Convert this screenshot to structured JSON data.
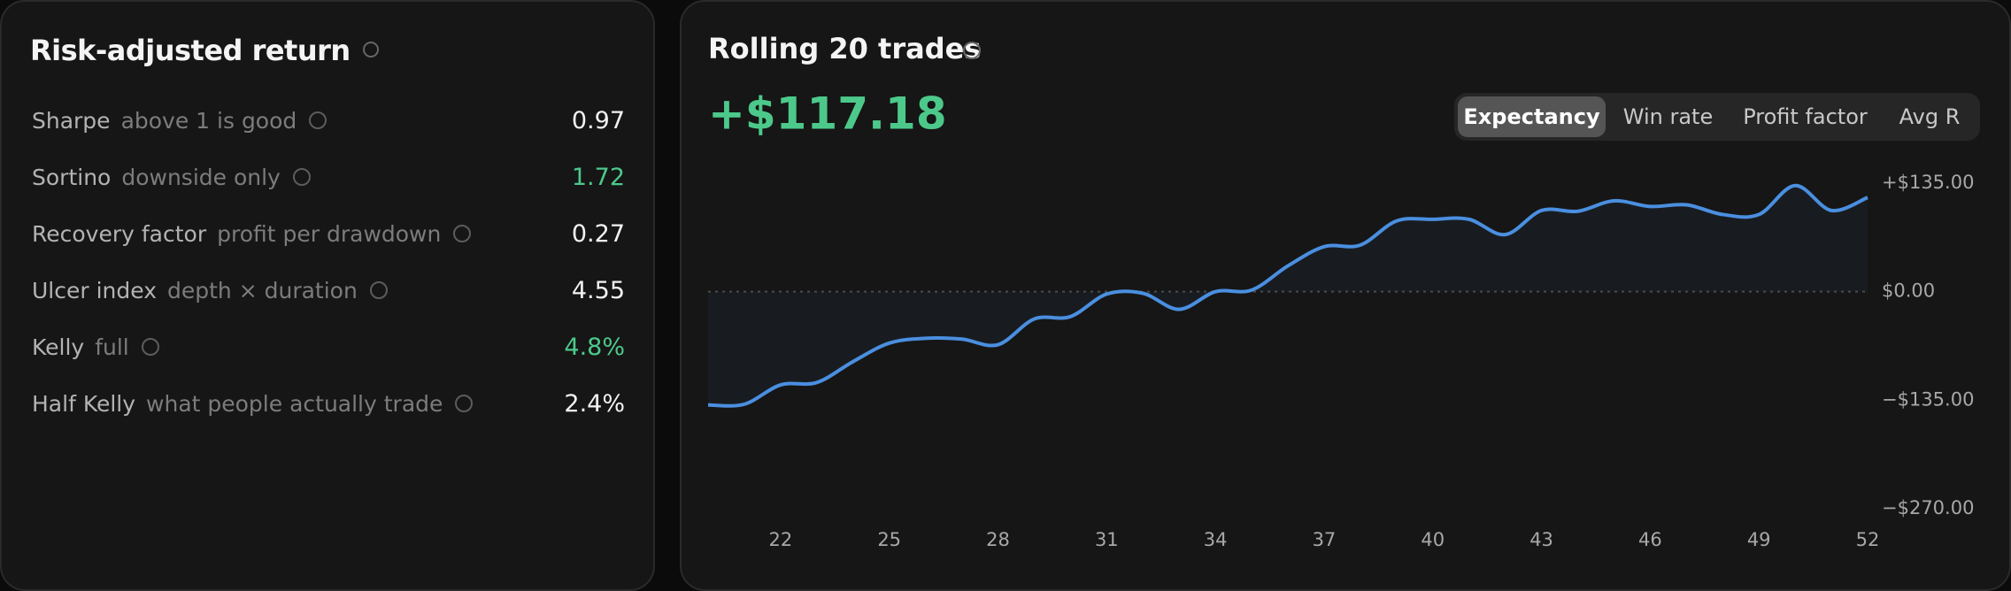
{
  "risk_panel": {
    "title": "Risk-adjusted return",
    "rows": [
      {
        "label": "Sharpe",
        "hint": "above 1 is good",
        "value": "0.97",
        "color": "#f2f2f2"
      },
      {
        "label": "Sortino",
        "hint": "downside only",
        "value": "1.72",
        "color": "#4cc98a"
      },
      {
        "label": "Recovery factor",
        "hint": "profit per drawdown",
        "value": "0.27",
        "color": "#f2f2f2"
      },
      {
        "label": "Ulcer index",
        "hint": "depth × duration",
        "value": "4.55",
        "color": "#f2f2f2"
      },
      {
        "label": "Kelly",
        "hint": "full",
        "value": "4.8%",
        "color": "#4cc98a"
      },
      {
        "label": "Half Kelly",
        "hint": "what people actually trade",
        "value": "2.4%",
        "color": "#f2f2f2"
      }
    ]
  },
  "tabs": {
    "items": [
      "Expectancy",
      "Win rate",
      "Profit factor",
      "Avg R"
    ],
    "active": 0
  },
  "chart_data": {
    "type": "line",
    "title": "Rolling 20 trades",
    "headline": "+$117.18",
    "headline_color": "#4cc98a",
    "x": [
      20,
      21,
      22,
      23,
      24,
      25,
      26,
      27,
      28,
      29,
      30,
      31,
      32,
      33,
      34,
      35,
      36,
      37,
      38,
      39,
      40,
      41,
      42,
      43,
      44,
      45,
      46,
      47,
      48,
      49,
      50,
      51,
      52
    ],
    "series": [
      {
        "name": "Expectancy",
        "color": "#4a8fe0",
        "values": [
          -141,
          -140,
          -116,
          -113,
          -87,
          -64,
          -58,
          -59,
          -66,
          -34,
          -31,
          -3,
          -2,
          -22,
          0,
          2,
          32,
          56,
          58,
          88,
          90,
          90,
          71,
          101,
          100,
          113,
          106,
          108,
          96,
          96,
          132,
          101,
          117.18
        ]
      }
    ],
    "xlim": [
      20,
      52
    ],
    "xticks": [
      22,
      25,
      28,
      31,
      34,
      37,
      40,
      43,
      46,
      49,
      52
    ],
    "ylim": [
      -270,
      135
    ],
    "yticks": [
      {
        "value": 135,
        "label": "+$135.00"
      },
      {
        "value": 0,
        "label": "$0.00"
      },
      {
        "value": -135,
        "label": "−$135.00"
      },
      {
        "value": -270,
        "label": "−$270.00"
      }
    ],
    "grid": false
  }
}
